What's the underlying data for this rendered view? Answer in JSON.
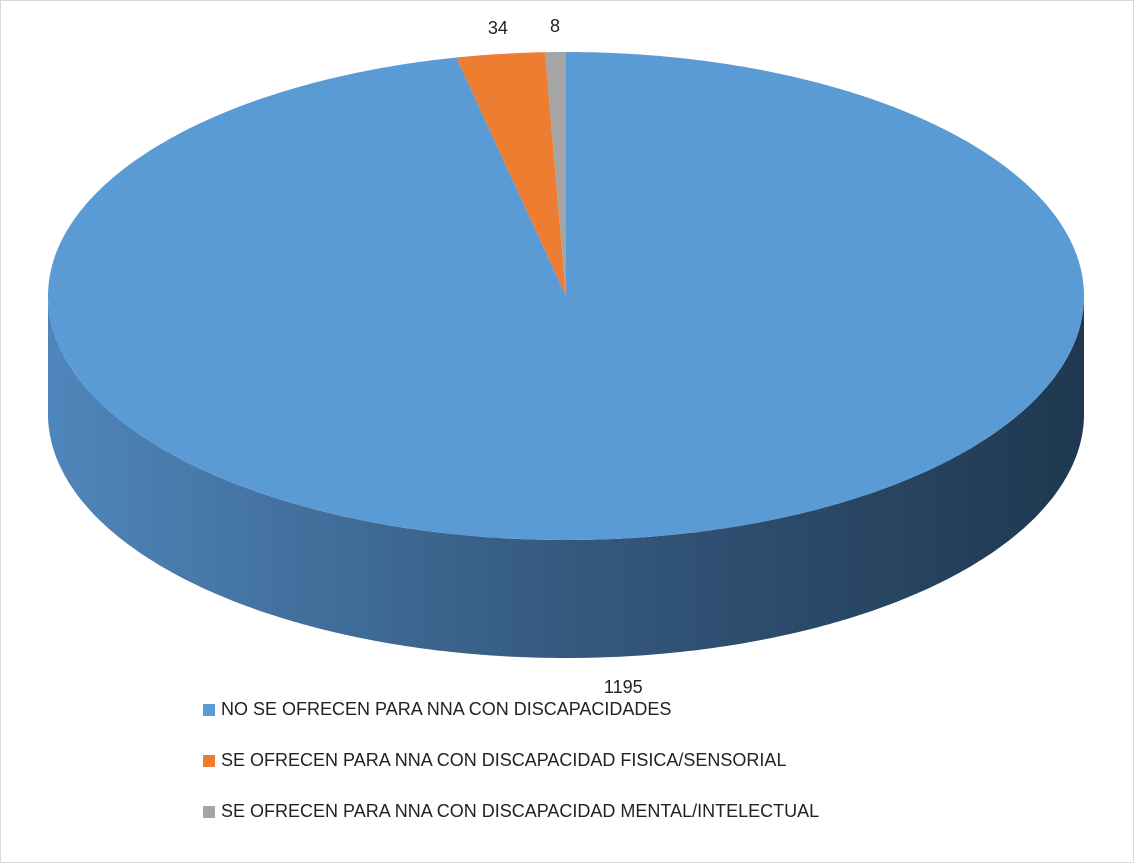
{
  "chart_data": {
    "type": "pie",
    "categories": [
      "NO SE OFRECEN PARA NNA CON DISCAPACIDADES",
      "SE OFRECEN PARA NNA CON DISCAPACIDAD FISICA/SENSORIAL",
      "SE OFRECEN PARA NNA CON DISCAPACIDAD MENTAL/INTELECTUAL"
    ],
    "values": [
      1195,
      34,
      8
    ],
    "colors": [
      "#5b9bd5",
      "#ed7d31",
      "#a5a5a5"
    ]
  }
}
